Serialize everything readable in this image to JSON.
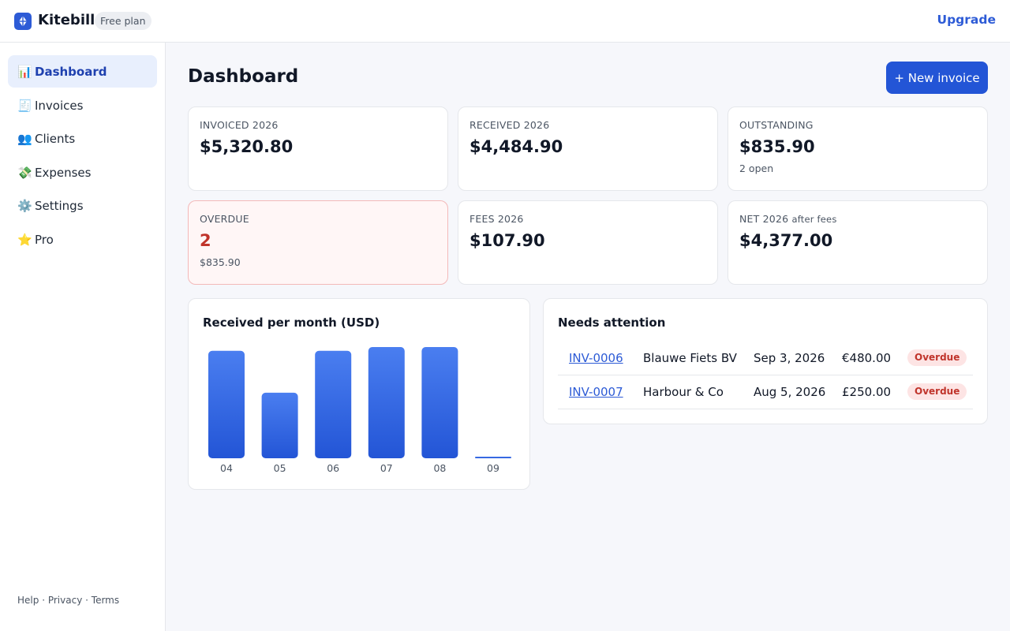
{
  "header": {
    "brand": "Kitebill",
    "plan": "Free plan",
    "upgrade": "Upgrade",
    "logo_icon": "kite-icon",
    "accent": "#2d5bd6"
  },
  "sidebar": {
    "items": [
      {
        "icon": "📊",
        "icon_name": "bar-chart-icon",
        "label": "Dashboard",
        "active": true
      },
      {
        "icon": "🧾",
        "icon_name": "receipt-icon",
        "label": "Invoices"
      },
      {
        "icon": "👥",
        "icon_name": "users-icon",
        "label": "Clients"
      },
      {
        "icon": "💸",
        "icon_name": "money-icon",
        "label": "Expenses"
      },
      {
        "icon": "⚙️",
        "icon_name": "gear-icon",
        "label": "Settings"
      },
      {
        "icon": "⭐",
        "icon_name": "star-icon",
        "label": "Pro"
      }
    ],
    "footer": {
      "help": "Help",
      "privacy": "Privacy",
      "terms": "Terms",
      "separator": "·"
    }
  },
  "main": {
    "title": "Dashboard",
    "new_invoice": "+ New invoice",
    "stats": [
      {
        "label": "INVOICED 2026",
        "value": "$5,320.80"
      },
      {
        "label": "RECEIVED 2026",
        "value": "$4,484.90"
      },
      {
        "label": "OUTSTANDING",
        "value": "$835.90",
        "sub": "2 open"
      },
      {
        "label": "OVERDUE",
        "value": "2",
        "sub": "$835.90"
      },
      {
        "label": "FEES 2026",
        "value": "$107.90"
      },
      {
        "label": "NET 2026",
        "label_suffix": "after fees",
        "value": "$4,377.00"
      }
    ],
    "attention": {
      "title": "Needs attention",
      "rows": [
        {
          "id": "INV-0006",
          "client": "Blauwe Fiets BV",
          "date": "Sep 3, 2026",
          "amount": "€480.00",
          "status": "Overdue"
        },
        {
          "id": "INV-0007",
          "client": "Harbour & Co",
          "date": "Aug 5, 2026",
          "amount": "£250.00",
          "status": "Overdue"
        }
      ]
    }
  },
  "chart_data": {
    "type": "bar",
    "title": "Received per month (USD)",
    "categories": [
      "04",
      "05",
      "06",
      "07",
      "08",
      "09"
    ],
    "values": [
      1000,
      610,
      1000,
      1035,
      1035,
      15
    ],
    "ylim": [
      0,
      1035
    ],
    "grid": false,
    "colors": {
      "bar_top": "#4a7ef0",
      "bar_bottom": "#2355d6"
    }
  }
}
